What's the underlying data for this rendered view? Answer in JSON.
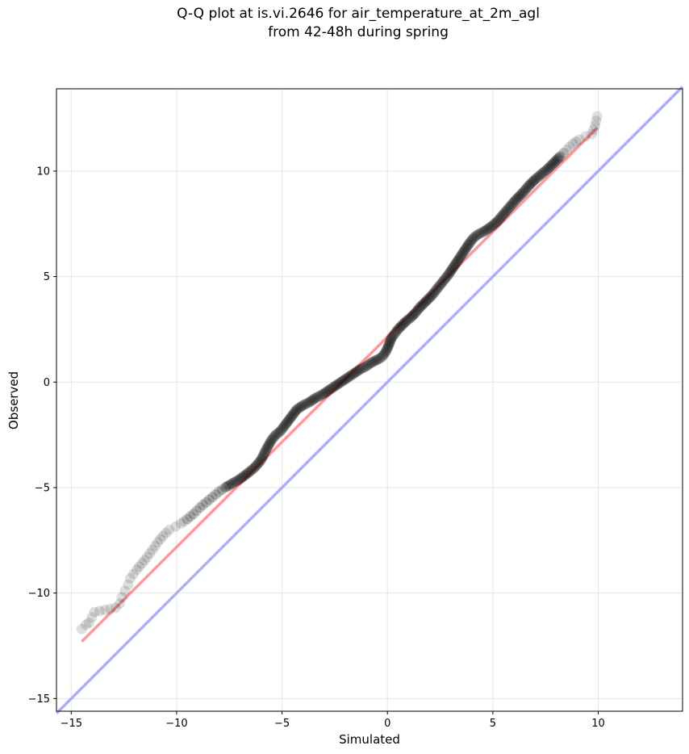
{
  "chart_data": {
    "type": "scatter",
    "title": "Q-Q plot at is.vi.2646 for air_temperature_at_2m_agl",
    "subtitle": "from 42-48h during spring",
    "xlabel": "Simulated",
    "ylabel": "Observed",
    "xlim": [
      -15.7,
      14.0
    ],
    "ylim": [
      -15.6,
      13.9
    ],
    "xticks": [
      -15,
      -10,
      -5,
      0,
      5,
      10
    ],
    "yticks": [
      -15,
      -10,
      -5,
      0,
      5,
      10
    ],
    "xtick_labels": [
      "−15",
      "−10",
      "−5",
      "0",
      "5",
      "10"
    ],
    "ytick_labels": [
      "−15",
      "−10",
      "−5",
      "0",
      "5",
      "10"
    ],
    "grid": true,
    "colors": {
      "points": "#000000",
      "fit_line": "#ff9999",
      "identity_line": "#aab0f5"
    },
    "series": [
      {
        "type": "scatter",
        "x": [
          -14.5,
          -14.3,
          -14.15,
          -13.9,
          -12.9,
          -12.7,
          -12.6,
          -12.45,
          -12.3,
          -12.2,
          -12.05,
          -11.9,
          -11.65,
          -11.4,
          -11.15,
          -10.9,
          -10.65,
          -10.35,
          -10.05,
          -9.8,
          -9.5,
          -9.2,
          -8.9,
          -8.6,
          -8.3,
          -8.0,
          -7.7,
          -7.35,
          -7.0,
          -6.6,
          -6.3,
          -6.0,
          -5.75,
          -5.5,
          -5.3,
          -5.1,
          -4.9,
          -4.6,
          -4.3,
          -4.0,
          -3.7,
          -3.4,
          -3.1,
          -2.8,
          -2.5,
          -2.2,
          -1.9,
          -1.6,
          -1.3,
          -1.0,
          -0.8,
          -0.6,
          -0.4,
          -0.25,
          -0.1,
          0.0,
          0.1,
          0.2,
          0.35,
          0.5,
          0.7,
          0.9,
          1.1,
          1.3,
          1.5,
          1.7,
          1.9,
          2.1,
          2.3,
          2.5,
          2.7,
          2.9,
          3.1,
          3.3,
          3.5,
          3.7,
          3.9,
          4.1,
          4.3,
          4.6,
          4.9,
          5.2,
          5.5,
          5.8,
          6.1,
          6.4,
          6.7,
          7.0,
          7.3,
          7.6,
          7.9,
          8.2,
          8.5,
          8.8,
          9.1,
          9.4,
          9.7,
          9.85,
          9.95
        ],
        "y": [
          -11.7,
          -11.5,
          -11.4,
          -10.9,
          -10.7,
          -10.5,
          -10.2,
          -9.9,
          -9.6,
          -9.3,
          -9.1,
          -8.9,
          -8.6,
          -8.3,
          -7.95,
          -7.6,
          -7.3,
          -7.0,
          -6.85,
          -6.7,
          -6.5,
          -6.25,
          -5.95,
          -5.7,
          -5.45,
          -5.2,
          -5.0,
          -4.8,
          -4.6,
          -4.3,
          -4.05,
          -3.7,
          -3.2,
          -2.75,
          -2.5,
          -2.35,
          -2.1,
          -1.7,
          -1.3,
          -1.1,
          -0.95,
          -0.75,
          -0.6,
          -0.4,
          -0.2,
          0.0,
          0.2,
          0.4,
          0.6,
          0.75,
          0.9,
          1.0,
          1.1,
          1.2,
          1.4,
          1.6,
          1.85,
          2.1,
          2.3,
          2.5,
          2.7,
          2.9,
          3.05,
          3.25,
          3.5,
          3.7,
          3.9,
          4.1,
          4.35,
          4.6,
          4.85,
          5.1,
          5.4,
          5.7,
          6.0,
          6.3,
          6.6,
          6.85,
          7.0,
          7.15,
          7.35,
          7.6,
          7.95,
          8.3,
          8.65,
          8.95,
          9.3,
          9.6,
          9.85,
          10.1,
          10.4,
          10.7,
          11.0,
          11.3,
          11.5,
          11.65,
          11.75,
          12.15,
          12.6
        ]
      },
      {
        "type": "line",
        "x": [
          -14.5,
          9.95
        ],
        "y": [
          -12.3,
          12.05
        ]
      },
      {
        "type": "line",
        "x": [
          -15.7,
          14.0
        ],
        "y": [
          -15.7,
          14.0
        ]
      }
    ]
  }
}
